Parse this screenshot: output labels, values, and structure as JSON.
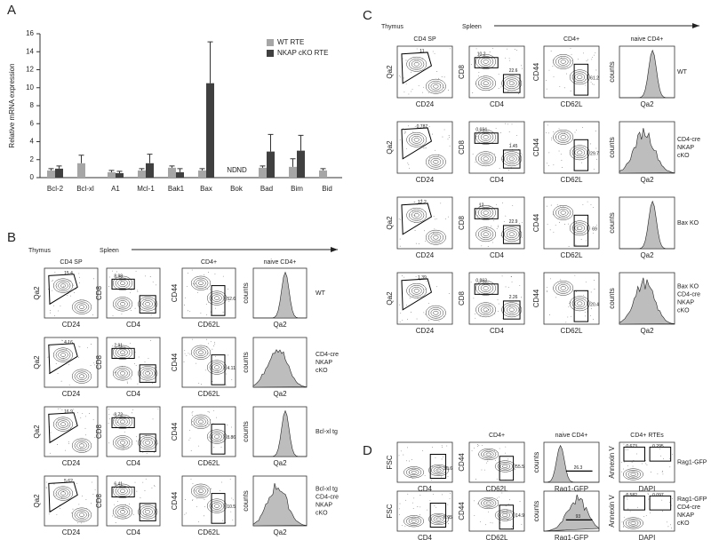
{
  "chart_data": {
    "type": "bar",
    "letter": "A",
    "ylabel": "Relative mRNA expression",
    "categories": [
      "Bcl-2",
      "Bcl-xl",
      "A1",
      "Mcl-1",
      "Bak1",
      "Bax",
      "Bok",
      "Bad",
      "Bim",
      "Bid"
    ],
    "series": [
      {
        "name": "WT RTE",
        "color": "#a6a6a6",
        "values": [
          0.8,
          1.6,
          0.6,
          0.8,
          1.1,
          0.8,
          null,
          1.1,
          1.2,
          0.8
        ],
        "errors": [
          0.2,
          0.9,
          0.2,
          0.2,
          0.2,
          0.2,
          null,
          0.2,
          0.9,
          0.2
        ]
      },
      {
        "name": "NKAP cKO RTE",
        "color": "#404040",
        "values": [
          1.0,
          null,
          0.5,
          1.6,
          0.6,
          10.5,
          null,
          2.9,
          3.0,
          null
        ],
        "errors": [
          0.3,
          null,
          0.2,
          1.0,
          0.4,
          4.6,
          null,
          1.9,
          1.7,
          null
        ]
      }
    ],
    "annotations": [
      "ND",
      "ND"
    ],
    "ylim": [
      0,
      16
    ],
    "yticks": [
      0,
      2,
      4,
      6,
      8,
      10,
      12,
      14,
      16
    ],
    "legend": "upper right"
  },
  "panel_b": {
    "letter": "B",
    "tissues": [
      "Thymus",
      "Spleen"
    ],
    "headers": [
      "CD4 SP",
      null,
      "CD4+",
      "naive CD4+"
    ],
    "axes": [
      [
        "Qa2",
        "CD24"
      ],
      [
        "CD8",
        "CD4"
      ],
      [
        "CD44",
        "CD62L"
      ],
      [
        "counts",
        "Qa2"
      ]
    ],
    "rows": [
      {
        "label": [
          "WT"
        ],
        "gates": [
          [
            "15.4"
          ],
          [
            "8.98"
          ],
          [
            "52.6"
          ],
          []
        ]
      },
      {
        "label": [
          "CD4-cre",
          "NKAP",
          "cKO"
        ],
        "gates": [
          [
            "4.16"
          ],
          [
            "2.91"
          ],
          [
            "4.11"
          ],
          []
        ]
      },
      {
        "label": [
          "Bcl-xl tg"
        ],
        "gates": [
          [
            "16.9"
          ],
          [
            "8.72"
          ],
          [
            "8.86"
          ],
          []
        ]
      },
      {
        "label": [
          "Bcl-xl tg",
          "CD4-cre",
          "NKAP",
          "cKO"
        ],
        "gates": [
          [
            "5.62"
          ],
          [
            "6.41"
          ],
          [
            "10.5"
          ],
          []
        ]
      }
    ]
  },
  "panel_c": {
    "letter": "C",
    "tissues": [
      "Thymus",
      "Spleen"
    ],
    "headers": [
      "CD4 SP",
      null,
      "CD4+",
      "naive CD4+"
    ],
    "axes": [
      [
        "Qa2",
        "CD24"
      ],
      [
        "CD8",
        "CD4"
      ],
      [
        "CD44",
        "CD62L"
      ],
      [
        "counts",
        "Qa2"
      ]
    ],
    "rows": [
      {
        "label": [
          "WT"
        ],
        "gates": [
          [
            "11"
          ],
          [
            "10.2",
            "22.6"
          ],
          [
            "61.2"
          ],
          []
        ]
      },
      {
        "label": [
          "CD4-cre",
          "NKAP",
          "cKO"
        ],
        "gates": [
          [
            "0.787"
          ],
          [
            "0.694",
            "1.45"
          ],
          [
            "29.7"
          ],
          []
        ]
      },
      {
        "label": [
          "Bax KO"
        ],
        "gates": [
          [
            "12.2"
          ],
          [
            "12",
            "22.9"
          ],
          [
            "69"
          ],
          []
        ]
      },
      {
        "label": [
          "Bax KO",
          "CD4-cre",
          "NKAP",
          "cKO"
        ],
        "gates": [
          [
            "1.39"
          ],
          [
            "0.863",
            "2.26"
          ],
          [
            "20.4"
          ],
          []
        ]
      }
    ]
  },
  "panel_d": {
    "letter": "D",
    "headers": [
      null,
      "CD4+",
      "naive CD4+",
      "CD4+ RTEs"
    ],
    "axes": [
      [
        "FSC",
        "CD4"
      ],
      [
        "CD44",
        "CD62L"
      ],
      [
        "counts",
        "Rag1-GFP"
      ],
      [
        "Annexin V",
        "DAPI"
      ]
    ],
    "rows": [
      {
        "label": [
          "Rag1-GFP"
        ],
        "gates": [
          [
            "30.6"
          ],
          [
            "55.5"
          ],
          [
            "26.3"
          ],
          [
            "0.673",
            "0.295"
          ]
        ]
      },
      {
        "label": [
          "Rag1-GFP",
          "CD4-cre",
          "NKAP",
          "cKO"
        ],
        "gates": [
          [
            "6.95"
          ],
          [
            "14.9"
          ],
          [
            "93"
          ],
          [
            "0.582",
            "0.097"
          ]
        ]
      }
    ]
  }
}
